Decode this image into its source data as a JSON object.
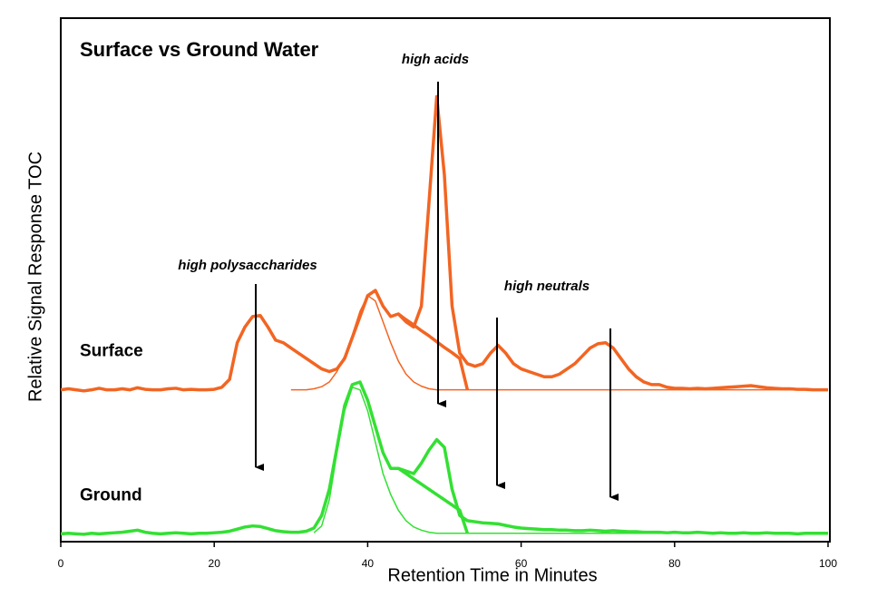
{
  "chart_data": {
    "type": "line",
    "title": "Surface vs Ground Water",
    "x_label": "Retention Time in Minutes",
    "y_label": "Relative Signal Response TOC",
    "annotations": [
      "high polysaccharides",
      "high acids",
      "high neutrals"
    ],
    "xlim": [
      0,
      100
    ],
    "xticks": [
      0,
      20,
      40,
      60,
      80,
      100
    ],
    "ylim": [
      0,
      100
    ],
    "x": [
      0,
      1,
      2,
      3,
      4,
      5,
      6,
      7,
      8,
      9,
      10,
      11,
      12,
      13,
      14,
      15,
      16,
      17,
      18,
      19,
      20,
      21,
      22,
      23,
      24,
      25,
      26,
      27,
      28,
      29,
      30,
      31,
      32,
      33,
      34,
      35,
      36,
      37,
      38,
      39,
      40,
      41,
      42,
      43,
      44,
      45,
      46,
      47,
      48,
      49,
      50,
      51,
      52,
      53,
      54,
      55,
      56,
      57,
      58,
      59,
      60,
      61,
      62,
      63,
      64,
      65,
      66,
      67,
      68,
      69,
      70,
      71,
      72,
      73,
      74,
      75,
      76,
      77,
      78,
      79,
      80,
      81,
      82,
      83,
      84,
      85,
      86,
      87,
      88,
      89,
      90,
      91,
      92,
      93,
      94,
      95,
      96,
      97,
      98,
      99,
      100
    ],
    "series": [
      {
        "name": "Surface",
        "color": "#f26522",
        "line_width": 3.5,
        "values": [
          29,
          29.2,
          29,
          28.8,
          29,
          29.3,
          29,
          29,
          29.2,
          29,
          29.4,
          29.1,
          29,
          29,
          29.2,
          29.3,
          29,
          29.1,
          29,
          29,
          29.1,
          29.5,
          31,
          38,
          41,
          43,
          43.2,
          41,
          38.5,
          38,
          37,
          36,
          35,
          34,
          33,
          32.5,
          33,
          35,
          39,
          43,
          47,
          48,
          45,
          43,
          43.5,
          42,
          41,
          45,
          65,
          85,
          70,
          45,
          36,
          34,
          33.5,
          34,
          36,
          37.5,
          36,
          34,
          33,
          32.5,
          32,
          31.5,
          31.5,
          32,
          33,
          34,
          35.5,
          37,
          37.8,
          38,
          37,
          35,
          33,
          31.5,
          30.5,
          30,
          30,
          29.5,
          29.3,
          29.3,
          29.2,
          29.3,
          29.2,
          29.3,
          29.4,
          29.5,
          29.6,
          29.7,
          29.8,
          29.6,
          29.4,
          29.3,
          29.2,
          29.2,
          29.1,
          29.1,
          29,
          29,
          29
        ]
      },
      {
        "color": "#f26522",
        "line_width": 1.5,
        "values": [
          null,
          null,
          null,
          null,
          null,
          null,
          null,
          null,
          null,
          null,
          null,
          null,
          null,
          null,
          null,
          null,
          null,
          null,
          null,
          null,
          null,
          null,
          null,
          null,
          null,
          null,
          null,
          null,
          null,
          null,
          29,
          29,
          29,
          29.2,
          29.6,
          30.5,
          32.5,
          35.5,
          39.5,
          44,
          47,
          46,
          42,
          38,
          34.5,
          32,
          30.5,
          29.7,
          29.2,
          29,
          29,
          29,
          29,
          29,
          29,
          29,
          29,
          29,
          29,
          29,
          29,
          29,
          29,
          29,
          29,
          29,
          29,
          29,
          29,
          29,
          29,
          29,
          29,
          29,
          29,
          29,
          29,
          29,
          29,
          29,
          29,
          29,
          29,
          29,
          29,
          29,
          29,
          29,
          29,
          29,
          29,
          29,
          29,
          29,
          29,
          29,
          29,
          29,
          29,
          29,
          29
        ]
      },
      {
        "color": "#f26522",
        "line_width": 3.5,
        "values": [
          null,
          null,
          null,
          null,
          null,
          null,
          null,
          null,
          null,
          null,
          null,
          null,
          null,
          null,
          null,
          null,
          null,
          null,
          null,
          null,
          null,
          null,
          null,
          null,
          null,
          null,
          null,
          null,
          null,
          null,
          null,
          null,
          null,
          null,
          null,
          null,
          null,
          null,
          null,
          null,
          null,
          null,
          null,
          null,
          43.5,
          42.4,
          41.4,
          40.3,
          39.3,
          38.2,
          37.1,
          36.1,
          35,
          29,
          null,
          null,
          null,
          null,
          null,
          null,
          null,
          null,
          null,
          null,
          null,
          null,
          null,
          null,
          null,
          null,
          null,
          null,
          null,
          null,
          null,
          null,
          null,
          null,
          null,
          null,
          null,
          null,
          null,
          null,
          null,
          null,
          null,
          null,
          null,
          null,
          null,
          null,
          null,
          null,
          null,
          null,
          null,
          null,
          null,
          null,
          null
        ]
      },
      {
        "name": "Ground",
        "color": "#33e033",
        "line_width": 3.5,
        "values": [
          1.5,
          1.6,
          1.5,
          1.4,
          1.6,
          1.5,
          1.6,
          1.7,
          1.8,
          2,
          2.2,
          1.8,
          1.6,
          1.5,
          1.6,
          1.7,
          1.6,
          1.5,
          1.6,
          1.6,
          1.7,
          1.8,
          2,
          2.4,
          2.8,
          3,
          2.9,
          2.5,
          2.1,
          1.9,
          1.8,
          1.8,
          2,
          2.6,
          5,
          10,
          18,
          26,
          30,
          30.5,
          27,
          22,
          17,
          14,
          14,
          13.5,
          13,
          15,
          17.5,
          19.5,
          18,
          10,
          5,
          4,
          3.8,
          3.6,
          3.5,
          3.4,
          3.1,
          2.8,
          2.6,
          2.5,
          2.4,
          2.3,
          2.3,
          2.2,
          2.2,
          2.1,
          2.1,
          2.2,
          2.1,
          2,
          2.1,
          2,
          1.9,
          1.9,
          1.8,
          1.8,
          1.8,
          1.7,
          1.8,
          1.7,
          1.7,
          1.8,
          1.7,
          1.6,
          1.7,
          1.6,
          1.6,
          1.7,
          1.6,
          1.6,
          1.7,
          1.6,
          1.6,
          1.6,
          1.5,
          1.6,
          1.6,
          1.6,
          1.6
        ]
      },
      {
        "color": "#33e033",
        "line_width": 1.5,
        "values": [
          null,
          null,
          null,
          null,
          null,
          null,
          null,
          null,
          null,
          null,
          null,
          null,
          null,
          null,
          null,
          null,
          null,
          null,
          null,
          null,
          null,
          null,
          null,
          null,
          null,
          null,
          null,
          null,
          null,
          null,
          null,
          null,
          null,
          1.7,
          3,
          8,
          17,
          25,
          29.5,
          29,
          25,
          19,
          13,
          9,
          6,
          4,
          2.8,
          2.2,
          1.8,
          1.6,
          1.6,
          1.6,
          1.6,
          1.6,
          1.6,
          1.6,
          1.6,
          1.6,
          1.6,
          1.6,
          1.6,
          1.6,
          1.6,
          1.6,
          1.6,
          1.6,
          1.6,
          1.6,
          1.6,
          1.6,
          1.6,
          1.6,
          1.6,
          1.6,
          1.6,
          1.6,
          1.6,
          1.6,
          1.6,
          1.6,
          1.6,
          1.6,
          1.6,
          1.6,
          1.6,
          1.6,
          1.6,
          1.6,
          1.6,
          1.6,
          1.6,
          1.6,
          1.6,
          1.6,
          1.6,
          1.6,
          1.6,
          1.6,
          1.6,
          1.6,
          1.6
        ]
      },
      {
        "color": "#33e033",
        "line_width": 3.5,
        "values": [
          null,
          null,
          null,
          null,
          null,
          null,
          null,
          null,
          null,
          null,
          null,
          null,
          null,
          null,
          null,
          null,
          null,
          null,
          null,
          null,
          null,
          null,
          null,
          null,
          null,
          null,
          null,
          null,
          null,
          null,
          null,
          null,
          null,
          null,
          null,
          null,
          null,
          null,
          null,
          null,
          null,
          null,
          null,
          null,
          14,
          13,
          12,
          11,
          10,
          9,
          8,
          7,
          6,
          1.6,
          null,
          null,
          null,
          null,
          null,
          null,
          null,
          null,
          null,
          null,
          null,
          null,
          null,
          null,
          null,
          null,
          null,
          null,
          null,
          null,
          null,
          null,
          null,
          null,
          null,
          null,
          null,
          null,
          null,
          null,
          null,
          null,
          null,
          null,
          null,
          null,
          null,
          null,
          null,
          null,
          null,
          null,
          null,
          null,
          null,
          null,
          null
        ]
      }
    ]
  }
}
